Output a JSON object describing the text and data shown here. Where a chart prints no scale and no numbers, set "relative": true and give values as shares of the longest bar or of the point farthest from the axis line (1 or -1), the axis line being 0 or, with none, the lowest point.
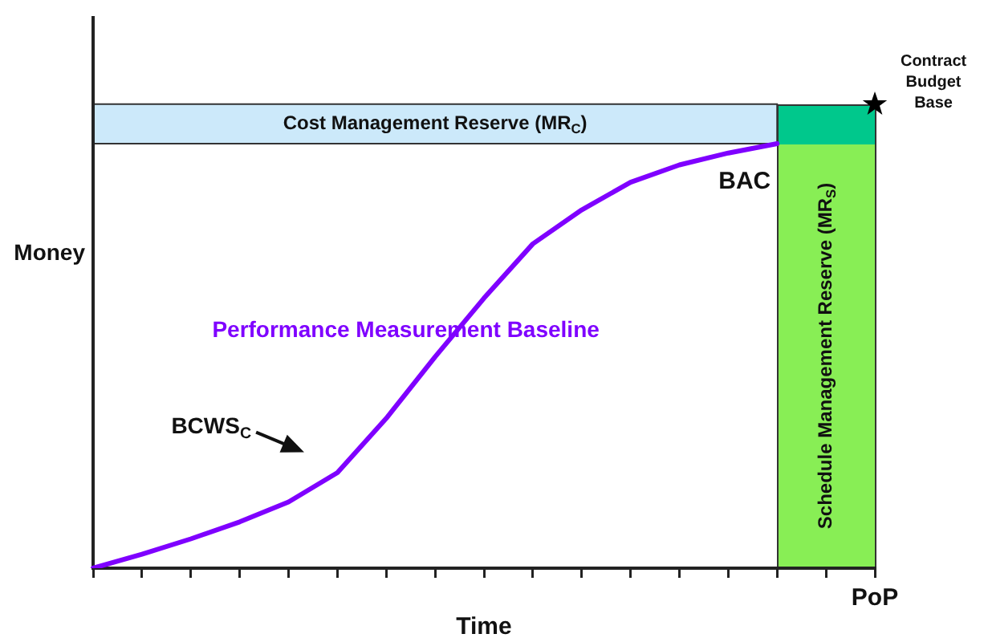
{
  "chart_data": {
    "type": "line",
    "relative": true,
    "xlabel": "Time",
    "ylabel": "Money",
    "categories": [
      null,
      null,
      null,
      null,
      null,
      null,
      null,
      null,
      null,
      null,
      null,
      null,
      null,
      null,
      null,
      null,
      null
    ],
    "series": [
      {
        "color": "#7f00ff",
        "marker": "none",
        "line_style": "solid",
        "values": [
          0,
          0.033,
          0.069,
          0.109,
          0.156,
          0.225,
          0.353,
          0.498,
          0.636,
          0.764,
          0.844,
          0.909,
          0.95,
          0.978,
          1,
          null,
          null
        ]
      }
    ],
    "bands": [
      {
        "axis": "y",
        "from": 1,
        "to": 1.093,
        "label": "Cost Management Reserve (MR$_{C}$)",
        "color": "#cce9fa"
      }
    ],
    "annotations": [
      {
        "text": "BAC",
        "y": 1
      },
      "Contract Budget Base",
      "BCWS$_{C}$",
      "Performance Measurement Baseline",
      "PoP",
      "Schedule Management Reserve (MR$_{S}$)"
    ],
    "legend": false
  }
}
